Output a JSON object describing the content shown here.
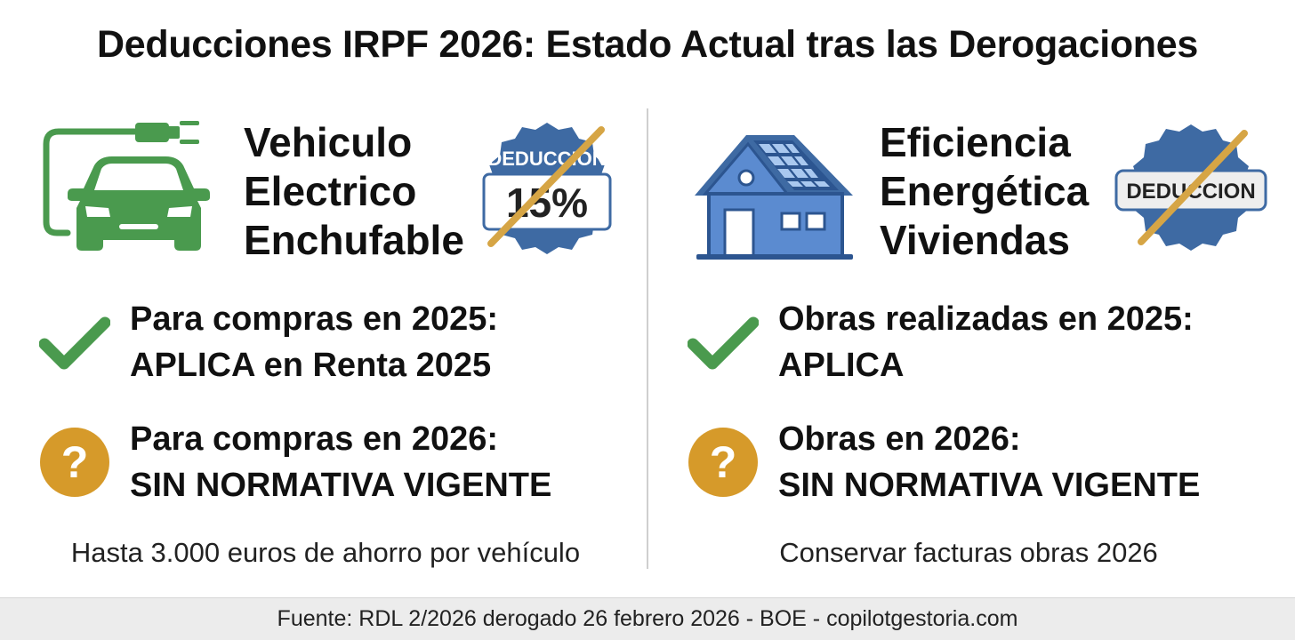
{
  "title": "Deducciones IRPF 2026: Estado Actual tras las Derogaciones",
  "left": {
    "icon": "electric-car-plug-icon",
    "heading": [
      "Vehiculo",
      "Electrico",
      "Enchufable"
    ],
    "badge": {
      "label": "DEDUCCION",
      "value": "15%",
      "icon": "crossed-out-badge-icon"
    },
    "rows": [
      {
        "icon": "check-icon",
        "line1": "Para compras en 2025:",
        "line2": "APLICA en Renta 2025"
      },
      {
        "icon": "question-icon",
        "line1": "Para compras en 2026:",
        "line2": "SIN NORMATIVA VIGENTE"
      }
    ],
    "note": "Hasta 3.000 euros de ahorro por vehículo"
  },
  "right": {
    "icon": "solar-house-icon",
    "heading": [
      "Eficiencia",
      "Energética",
      "Viviendas"
    ],
    "badge": {
      "label": "DEDUCCION",
      "icon": "crossed-out-badge-icon"
    },
    "rows": [
      {
        "icon": "check-icon",
        "line1": "Obras realizadas en 2025:",
        "line2": "APLICA"
      },
      {
        "icon": "question-icon",
        "line1": "Obras en 2026:",
        "line2": "SIN NORMATIVA VIGENTE"
      }
    ],
    "note": "Conservar facturas obras 2026"
  },
  "footer": "Fuente: RDL 2/2026 derogado 26 febrero 2026 - BOE - copilotgestoria.com",
  "colors": {
    "green": "#4a9a4e",
    "blue": "#3e6aa3",
    "orange": "#d69a2a",
    "strike": "#d6a545"
  }
}
